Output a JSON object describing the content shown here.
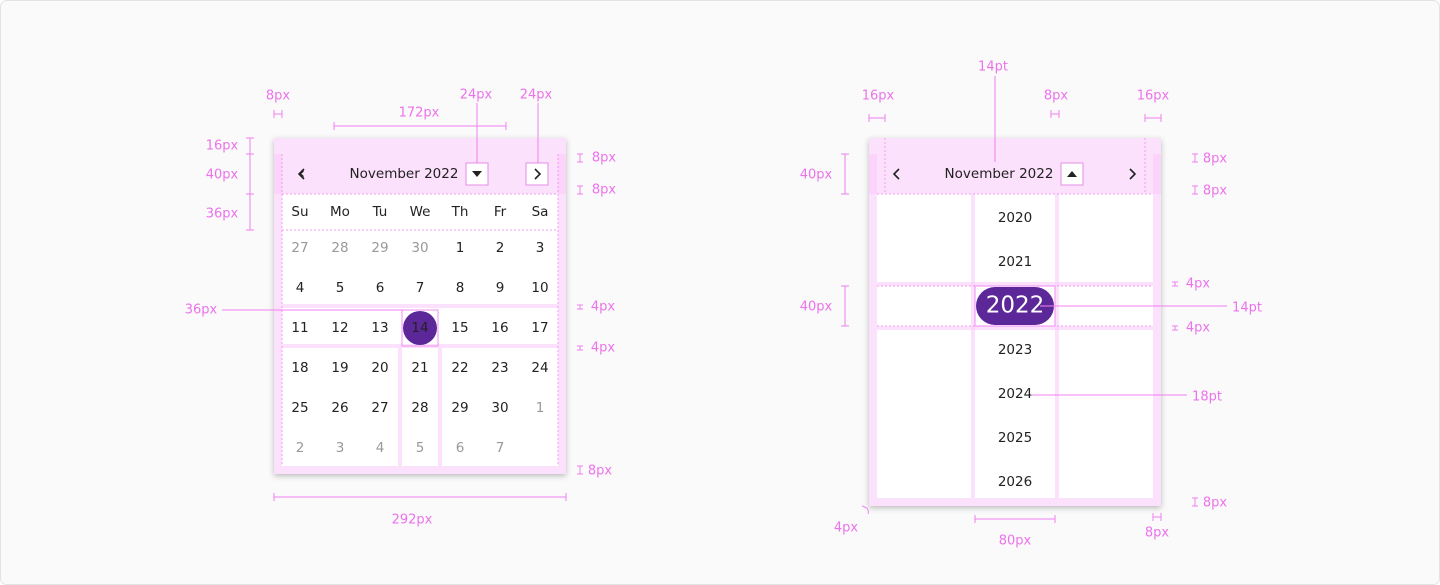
{
  "day_picker": {
    "month_label": "November 2022",
    "weekdays": [
      "Su",
      "Mo",
      "Tu",
      "We",
      "Th",
      "Fr",
      "Sa"
    ],
    "previous_month_days": [
      27,
      28,
      29,
      30
    ],
    "current_month_days": [
      1,
      2,
      3,
      4,
      5,
      6,
      7,
      8,
      9,
      10,
      11,
      12,
      13,
      14,
      15,
      16,
      17,
      18,
      19,
      20,
      21,
      22,
      23,
      24,
      25,
      26,
      27,
      28,
      29,
      30
    ],
    "next_month_days": [
      1,
      2,
      3,
      4,
      5,
      6,
      7
    ],
    "selected_day": 14,
    "annotations": [
      "8px",
      "172px",
      "24px",
      "24px",
      "16px",
      "40px",
      "36px",
      "8px",
      "8px",
      "4px",
      "4px",
      "8px",
      "36px",
      "292px"
    ]
  },
  "year_picker": {
    "month_label": "November 2022",
    "years": [
      2020,
      2021,
      2022,
      2023,
      2024,
      2025,
      2026
    ],
    "selected_year": 2022,
    "annotations": [
      "14pt",
      "16px",
      "8px",
      "16px",
      "40px",
      "8px",
      "8px",
      "40px",
      "4px",
      "14pt",
      "4px",
      "18pt",
      "8px",
      "4px",
      "80px",
      "8px"
    ]
  }
}
